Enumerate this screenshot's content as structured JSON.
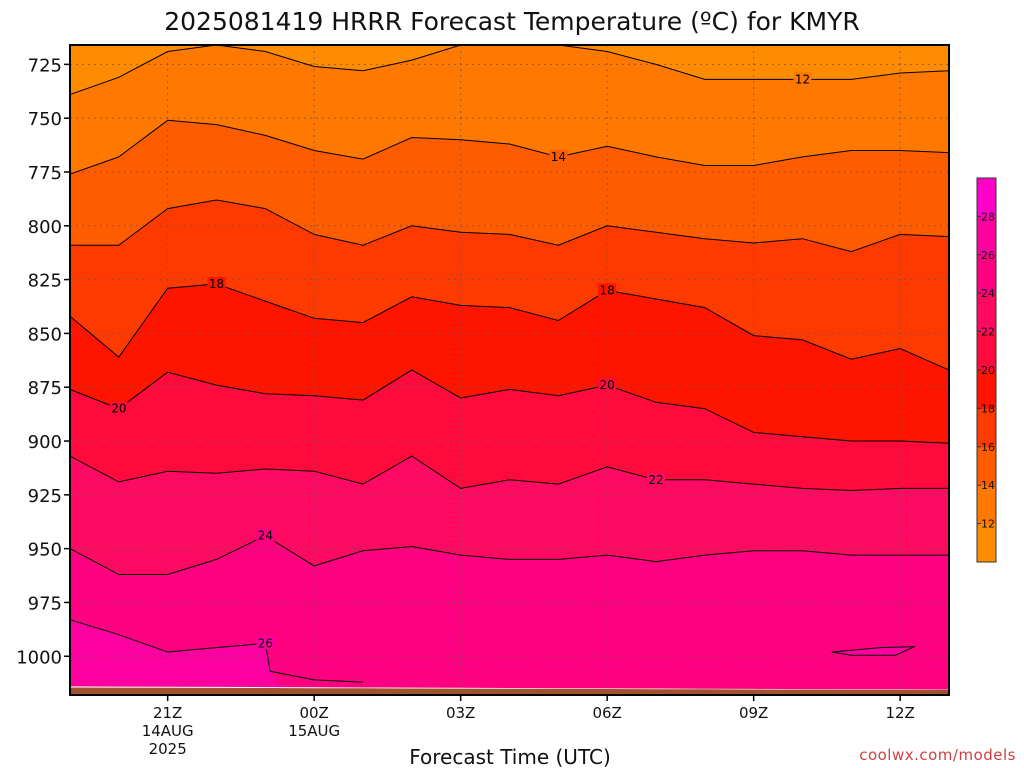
{
  "chart_data": {
    "type": "heatmap",
    "title": "2025081419 HRRR Forecast Temperature (ºC) for KMYR",
    "xlabel": "Forecast Time (UTC)",
    "ylabel": "",
    "credit": "coolwx.com/models",
    "y_axis": {
      "quantity": "pressure (hPa)",
      "inverted": true,
      "range": [
        1018,
        716
      ],
      "ticks": [
        725,
        750,
        775,
        800,
        825,
        850,
        875,
        900,
        925,
        950,
        975,
        1000
      ]
    },
    "x_axis": {
      "range_hours": [
        0,
        18
      ],
      "ticks": [
        {
          "hours": 2,
          "label": "21Z",
          "sub1": "14AUG",
          "sub2": "2025"
        },
        {
          "hours": 5,
          "label": "00Z",
          "sub1": "15AUG",
          "sub2": ""
        },
        {
          "hours": 8,
          "label": "03Z",
          "sub1": "",
          "sub2": ""
        },
        {
          "hours": 11,
          "label": "06Z",
          "sub1": "",
          "sub2": ""
        },
        {
          "hours": 14,
          "label": "09Z",
          "sub1": "",
          "sub2": ""
        },
        {
          "hours": 17,
          "label": "12Z",
          "sub1": "",
          "sub2": ""
        }
      ]
    },
    "grid": true,
    "colorbar": {
      "placement": "right",
      "ticks": [
        12,
        14,
        16,
        18,
        20,
        22,
        24,
        26,
        28
      ],
      "levels": [
        {
          "from": 10,
          "to": 12,
          "color": "#ff8c00"
        },
        {
          "from": 12,
          "to": 14,
          "color": "#ff7800"
        },
        {
          "from": 14,
          "to": 16,
          "color": "#ff5c00"
        },
        {
          "from": 16,
          "to": 18,
          "color": "#ff3a00"
        },
        {
          "from": 18,
          "to": 20,
          "color": "#ff1400"
        },
        {
          "from": 20,
          "to": 22,
          "color": "#ff0a3c"
        },
        {
          "from": 22,
          "to": 24,
          "color": "#ff0a62"
        },
        {
          "from": 24,
          "to": 26,
          "color": "#ff0080"
        },
        {
          "from": 26,
          "to": 28,
          "color": "#ff00a0"
        },
        {
          "from": 28,
          "to": 30,
          "color": "#ff00c8"
        }
      ]
    },
    "x_hours": [
      0,
      1,
      2,
      3,
      4,
      5,
      6,
      7,
      8,
      9,
      10,
      11,
      12,
      13,
      14,
      15,
      16,
      17,
      18
    ],
    "contours": [
      {
        "level": 12,
        "label": "12",
        "label_at_hours": 15,
        "color": "#ff7800",
        "pressure": [
          739,
          731,
          719,
          716,
          719,
          726,
          728,
          723,
          716,
          716,
          716,
          719,
          725,
          732,
          732,
          732,
          732,
          729,
          728
        ]
      },
      {
        "level": 14,
        "label": "14",
        "label_at_hours": 10,
        "color": "#ff5c00",
        "pressure": [
          776,
          768,
          751,
          753,
          758,
          765,
          769,
          759,
          760,
          762,
          768,
          763,
          768,
          772,
          772,
          768,
          765,
          765,
          766
        ]
      },
      {
        "level": 16,
        "label": "",
        "label_at_hours": null,
        "color": "#ff3a00",
        "pressure": [
          809,
          809,
          792,
          788,
          792,
          804,
          809,
          800,
          803,
          804,
          809,
          800,
          803,
          806,
          808,
          806,
          812,
          804,
          805
        ]
      },
      {
        "level": 18,
        "label": "18",
        "label_at_hours": 3,
        "label2_at_hours": 11,
        "color": "#ff1400",
        "pressure": [
          842,
          861,
          829,
          827,
          835,
          843,
          845,
          833,
          837,
          838,
          844,
          830,
          834,
          838,
          851,
          853,
          862,
          857,
          867
        ]
      },
      {
        "level": 20,
        "label": "20",
        "label_at_hours": 1,
        "label2_at_hours": 11,
        "color": "#ff0a3c",
        "pressure": [
          876,
          885,
          868,
          874,
          878,
          879,
          881,
          867,
          880,
          876,
          879,
          874,
          882,
          885,
          896,
          898,
          900,
          900,
          901
        ]
      },
      {
        "level": 22,
        "label": "22",
        "label_at_hours": 12,
        "color": "#ff0a62",
        "pressure": [
          907,
          919,
          914,
          915,
          913,
          914,
          920,
          907,
          922,
          918,
          920,
          912,
          918,
          918,
          920,
          922,
          923,
          922,
          922
        ]
      },
      {
        "level": 24,
        "label": "24",
        "label_at_hours": 4,
        "color": "#ff0080",
        "pressure": [
          950,
          962,
          962,
          955,
          944,
          958,
          951,
          949,
          953,
          955,
          955,
          953,
          956,
          953,
          951,
          951,
          953,
          953,
          953
        ]
      },
      {
        "level": 26,
        "label": "26",
        "label_at_hours": 4,
        "color": "#ff00a0",
        "pressure": [
          983,
          990,
          998,
          996,
          994,
          null,
          null,
          null,
          null,
          null,
          null,
          null,
          null,
          null,
          null,
          null,
          null,
          null,
          null
        ]
      }
    ],
    "surface_pressure": 1014,
    "ground_color": "#a0522d"
  }
}
